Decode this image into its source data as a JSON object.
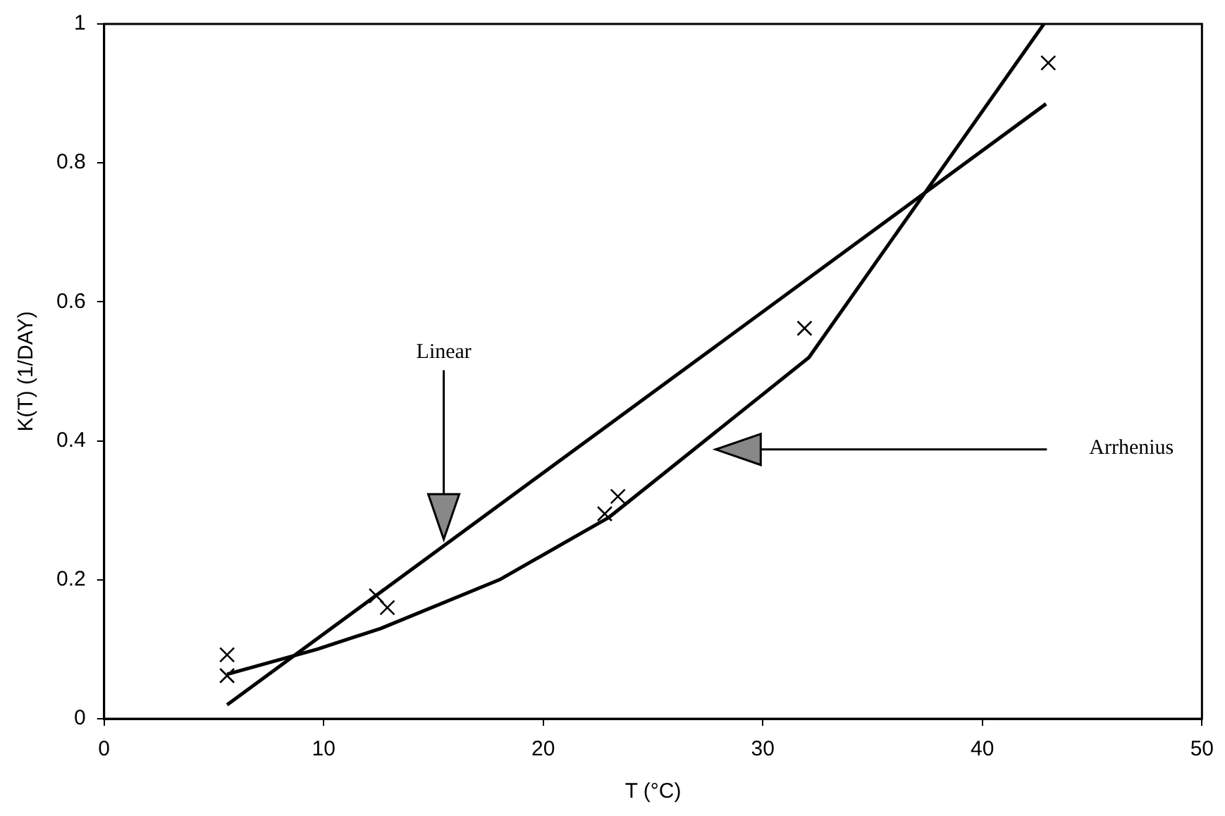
{
  "chart_data": {
    "type": "line",
    "xlabel": "T (°C)",
    "ylabel": "K(T) (1/DAY)",
    "xlim": [
      0,
      50
    ],
    "xticks": [
      0,
      10,
      20,
      30,
      40,
      50
    ],
    "ylim": [
      0,
      1
    ],
    "yticks": [
      0,
      0.2,
      0.4,
      0.6,
      0.8,
      1
    ],
    "grid": false,
    "legend": false,
    "series": [
      {
        "type": "scatter",
        "marker": "cross",
        "color": "#000000",
        "x": [
          5.6,
          5.6,
          12.4,
          12.9,
          22.8,
          23.4,
          31.9,
          43.0
        ],
        "values": [
          0.062,
          0.092,
          0.177,
          0.16,
          0.295,
          0.32,
          0.562,
          0.944
        ]
      },
      {
        "color": "#000000",
        "line_style": "solid",
        "x": [
          5.6,
          42.9
        ],
        "values": [
          0.02,
          0.885
        ]
      },
      {
        "color": "#000000",
        "line_style": "solid",
        "x": [
          5.6,
          9.7,
          12.6,
          18,
          23.0,
          32.1,
          42.8
        ],
        "values": [
          0.064,
          0.1,
          0.13,
          0.2,
          0.29,
          0.52,
          1.0
        ]
      }
    ],
    "annotations": [
      "Linear",
      "Arrhenius"
    ]
  }
}
